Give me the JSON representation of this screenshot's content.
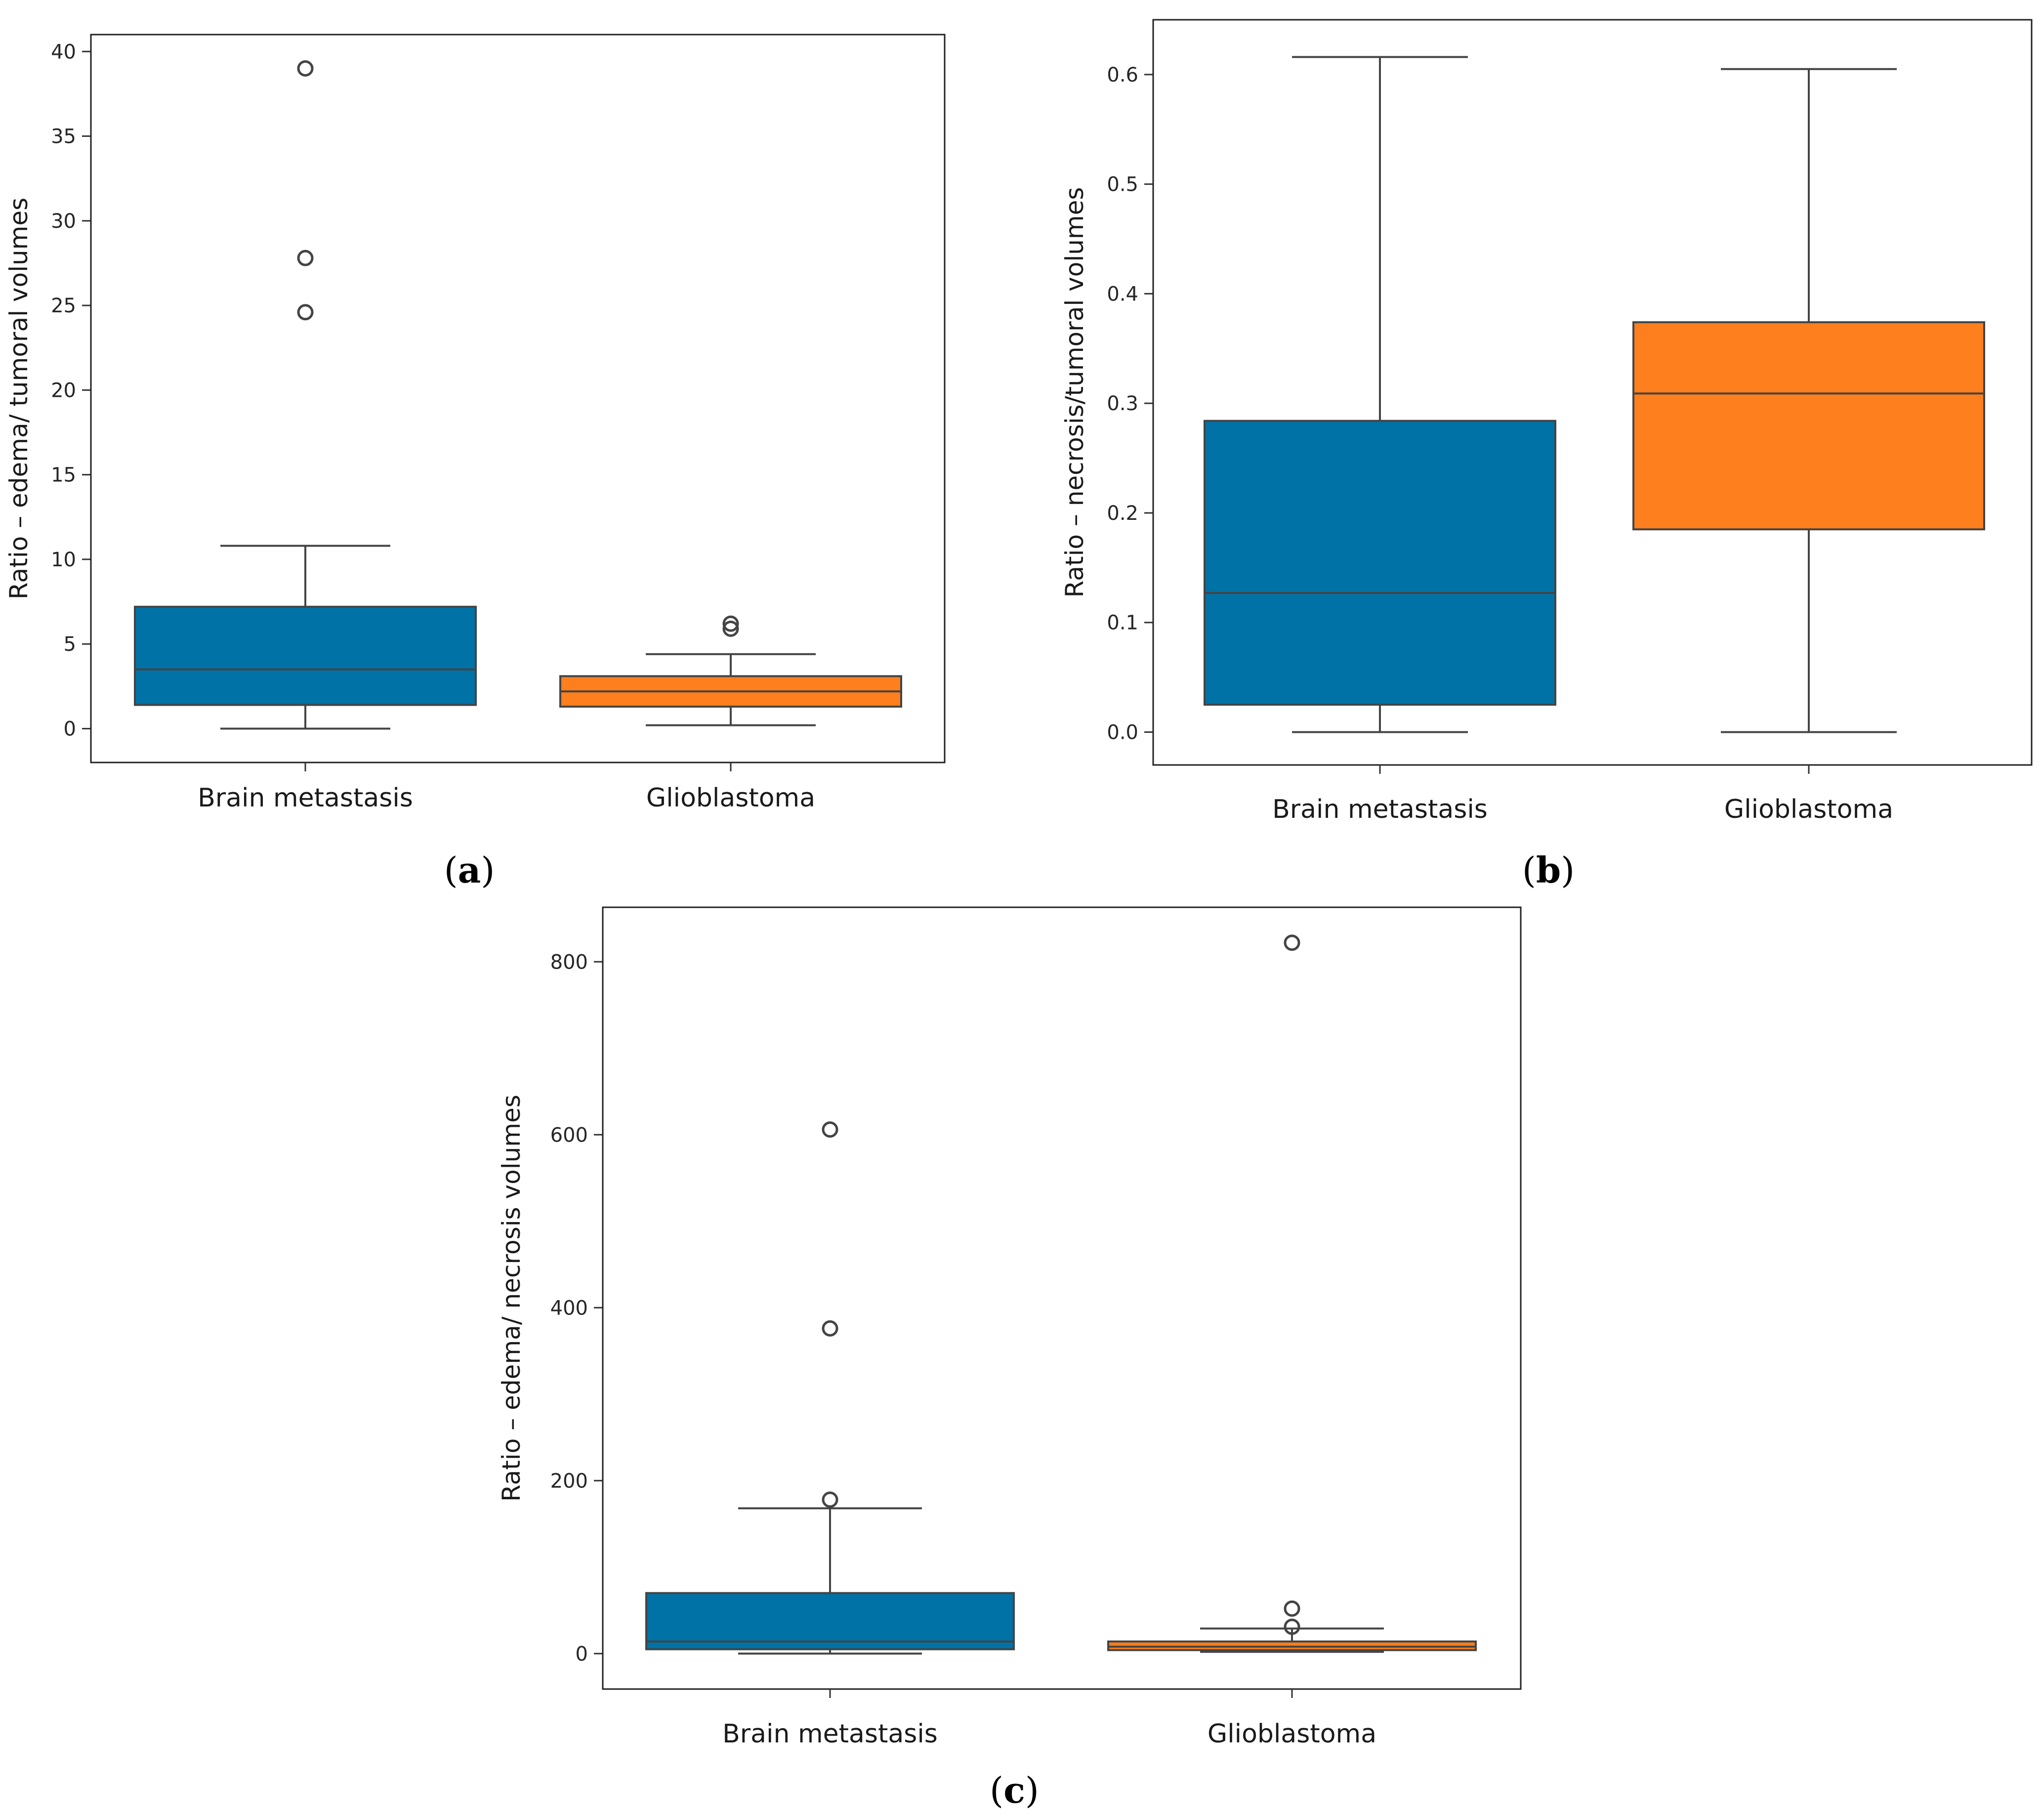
{
  "figure": {
    "colors": {
      "brain_metastasis": "#0072a5",
      "glioblastoma": "#fd7f1d",
      "line": "#444444"
    }
  },
  "chart_data": [
    {
      "id": "a",
      "type": "box",
      "panel_label": "a",
      "ylabel": "Ratio – edema/ tumoral volumes",
      "xlabel": "",
      "ylim": [
        -2,
        41
      ],
      "yticks": [
        0,
        5,
        10,
        15,
        20,
        25,
        30,
        35,
        40
      ],
      "categories": [
        "Brain metastasis",
        "Glioblastoma"
      ],
      "series": [
        {
          "name": "Brain metastasis",
          "whislo": 0.0,
          "q1": 1.4,
          "med": 3.5,
          "q3": 7.2,
          "whishi": 10.8,
          "fliers": [
            24.6,
            27.8,
            39.0
          ]
        },
        {
          "name": "Glioblastoma",
          "whislo": 0.2,
          "q1": 1.3,
          "med": 2.2,
          "q3": 3.1,
          "whishi": 4.4,
          "fliers": [
            5.9,
            6.2
          ]
        }
      ]
    },
    {
      "id": "b",
      "type": "box",
      "panel_label": "b",
      "ylabel": "Ratio – necrosis/tumoral volumes",
      "xlabel": "",
      "ylim": [
        -0.03,
        0.65
      ],
      "yticks": [
        0.0,
        0.1,
        0.2,
        0.3,
        0.4,
        0.5,
        0.6
      ],
      "ytick_labels": [
        "0.0",
        "0.1",
        "0.2",
        "0.3",
        "0.4",
        "0.5",
        "0.6"
      ],
      "categories": [
        "Brain metastasis",
        "Glioblastoma"
      ],
      "series": [
        {
          "name": "Brain metastasis",
          "whislo": 0.0,
          "q1": 0.025,
          "med": 0.127,
          "q3": 0.284,
          "whishi": 0.616,
          "fliers": []
        },
        {
          "name": "Glioblastoma",
          "whislo": 0.0,
          "q1": 0.185,
          "med": 0.309,
          "q3": 0.374,
          "whishi": 0.605,
          "fliers": []
        }
      ]
    },
    {
      "id": "c",
      "type": "box",
      "panel_label": "c",
      "ylabel": "Ratio – edema/ necrosis volumes",
      "xlabel": "",
      "ylim": [
        -41,
        863
      ],
      "yticks": [
        0,
        200,
        400,
        600,
        800
      ],
      "categories": [
        "Brain metastasis",
        "Glioblastoma"
      ],
      "series": [
        {
          "name": "Brain metastasis",
          "whislo": 0,
          "q1": 5,
          "med": 14,
          "q3": 70,
          "whishi": 168,
          "fliers": [
            178,
            376,
            606
          ]
        },
        {
          "name": "Glioblastoma",
          "whislo": 2,
          "q1": 4,
          "med": 8,
          "q3": 14,
          "whishi": 29,
          "fliers": [
            31,
            52,
            822
          ]
        }
      ]
    }
  ]
}
